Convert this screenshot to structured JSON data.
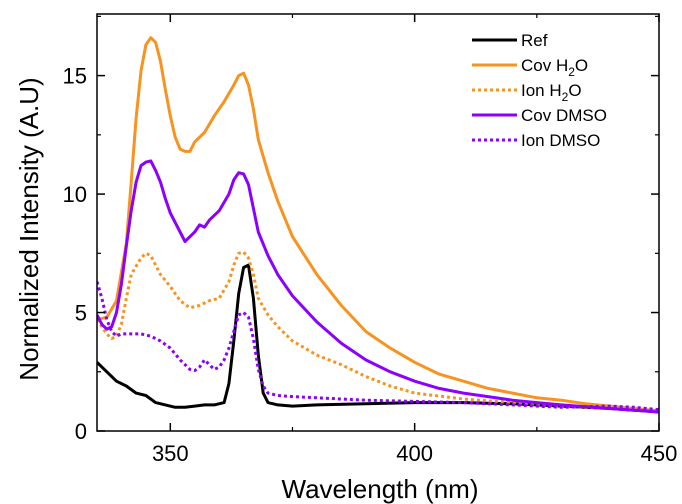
{
  "chart_data": {
    "type": "line",
    "title": "",
    "xlabel": "Wavelength (nm)",
    "ylabel": "Normalized Intensity (A.U)",
    "xlim": [
      335,
      450
    ],
    "ylim": [
      0,
      17.6
    ],
    "xticks": [
      350,
      400,
      450
    ],
    "yticks": [
      0,
      5,
      10,
      15
    ],
    "grid": false,
    "legend_position": "top-right",
    "series": [
      {
        "name": "Ref",
        "color": "#000000",
        "dashed": false,
        "points": [
          [
            335,
            2.9
          ],
          [
            337,
            2.5
          ],
          [
            339,
            2.1
          ],
          [
            341,
            1.9
          ],
          [
            343,
            1.6
          ],
          [
            345,
            1.5
          ],
          [
            347,
            1.2
          ],
          [
            349,
            1.1
          ],
          [
            351,
            1.0
          ],
          [
            353,
            1.0
          ],
          [
            355,
            1.05
          ],
          [
            357,
            1.1
          ],
          [
            359,
            1.1
          ],
          [
            361,
            1.2
          ],
          [
            362,
            2.0
          ],
          [
            363,
            3.8
          ],
          [
            364,
            5.8
          ],
          [
            365,
            6.9
          ],
          [
            366,
            7.0
          ],
          [
            367,
            5.6
          ],
          [
            368,
            3.2
          ],
          [
            369,
            1.6
          ],
          [
            370,
            1.2
          ],
          [
            372,
            1.1
          ],
          [
            375,
            1.05
          ],
          [
            380,
            1.1
          ],
          [
            390,
            1.15
          ],
          [
            400,
            1.2
          ],
          [
            410,
            1.2
          ],
          [
            420,
            1.15
          ],
          [
            430,
            1.05
          ],
          [
            440,
            0.95
          ],
          [
            450,
            0.8
          ]
        ]
      },
      {
        "name": "Cov H2O",
        "color": "#f7931e",
        "dashed": false,
        "points": [
          [
            335,
            4.7
          ],
          [
            337,
            4.8
          ],
          [
            339,
            5.5
          ],
          [
            341,
            7.9
          ],
          [
            342,
            10.5
          ],
          [
            343,
            13.2
          ],
          [
            344,
            15.2
          ],
          [
            345,
            16.3
          ],
          [
            346,
            16.6
          ],
          [
            347,
            16.4
          ],
          [
            348,
            15.6
          ],
          [
            349,
            14.4
          ],
          [
            350,
            13.3
          ],
          [
            351,
            12.4
          ],
          [
            352,
            11.9
          ],
          [
            353,
            11.8
          ],
          [
            354,
            11.8
          ],
          [
            355,
            12.2
          ],
          [
            357,
            12.6
          ],
          [
            359,
            13.3
          ],
          [
            361,
            13.9
          ],
          [
            363,
            14.6
          ],
          [
            364,
            15.0
          ],
          [
            365,
            15.1
          ],
          [
            366,
            14.6
          ],
          [
            367,
            13.6
          ],
          [
            368,
            12.3
          ],
          [
            370,
            10.9
          ],
          [
            372,
            9.7
          ],
          [
            375,
            8.2
          ],
          [
            380,
            6.6
          ],
          [
            385,
            5.3
          ],
          [
            390,
            4.2
          ],
          [
            395,
            3.5
          ],
          [
            400,
            2.9
          ],
          [
            405,
            2.4
          ],
          [
            410,
            2.1
          ],
          [
            415,
            1.8
          ],
          [
            420,
            1.6
          ],
          [
            425,
            1.4
          ],
          [
            430,
            1.3
          ],
          [
            435,
            1.15
          ],
          [
            440,
            1.05
          ],
          [
            445,
            0.95
          ],
          [
            450,
            0.85
          ]
        ]
      },
      {
        "name": "Ion H2O",
        "color": "#f7931e",
        "dashed": true,
        "points": [
          [
            335,
            4.7
          ],
          [
            337,
            4.1
          ],
          [
            338,
            3.9
          ],
          [
            339,
            4.0
          ],
          [
            340,
            4.5
          ],
          [
            341,
            5.6
          ],
          [
            342,
            6.6
          ],
          [
            344,
            7.3
          ],
          [
            345,
            7.5
          ],
          [
            346,
            7.4
          ],
          [
            347,
            7.0
          ],
          [
            348,
            6.6
          ],
          [
            350,
            6.1
          ],
          [
            352,
            5.5
          ],
          [
            354,
            5.2
          ],
          [
            356,
            5.3
          ],
          [
            358,
            5.5
          ],
          [
            360,
            5.6
          ],
          [
            362,
            6.3
          ],
          [
            363,
            7.0
          ],
          [
            364,
            7.5
          ],
          [
            365,
            7.55
          ],
          [
            366,
            7.3
          ],
          [
            367,
            6.6
          ],
          [
            368,
            5.6
          ],
          [
            370,
            4.9
          ],
          [
            372,
            4.4
          ],
          [
            375,
            3.8
          ],
          [
            380,
            3.2
          ],
          [
            385,
            2.8
          ],
          [
            390,
            2.3
          ],
          [
            395,
            1.9
          ],
          [
            400,
            1.6
          ],
          [
            410,
            1.35
          ],
          [
            420,
            1.2
          ],
          [
            430,
            1.05
          ],
          [
            440,
            0.95
          ],
          [
            450,
            0.85
          ]
        ]
      },
      {
        "name": "Cov DMSO",
        "color": "#8b00ff",
        "dashed": false,
        "points": [
          [
            335,
            4.9
          ],
          [
            336,
            4.5
          ],
          [
            337,
            4.3
          ],
          [
            338,
            4.4
          ],
          [
            339,
            5.0
          ],
          [
            340,
            6.2
          ],
          [
            341,
            7.8
          ],
          [
            342,
            9.3
          ],
          [
            343,
            10.5
          ],
          [
            344,
            11.2
          ],
          [
            345,
            11.35
          ],
          [
            346,
            11.4
          ],
          [
            347,
            11.0
          ],
          [
            348,
            10.5
          ],
          [
            349,
            9.8
          ],
          [
            350,
            9.2
          ],
          [
            351,
            8.8
          ],
          [
            352,
            8.4
          ],
          [
            353,
            8.0
          ],
          [
            354,
            8.2
          ],
          [
            355,
            8.4
          ],
          [
            356,
            8.7
          ],
          [
            357,
            8.6
          ],
          [
            358,
            8.9
          ],
          [
            360,
            9.3
          ],
          [
            362,
            10.0
          ],
          [
            363,
            10.6
          ],
          [
            364,
            10.9
          ],
          [
            365,
            10.85
          ],
          [
            366,
            10.4
          ],
          [
            367,
            9.4
          ],
          [
            368,
            8.4
          ],
          [
            370,
            7.4
          ],
          [
            372,
            6.6
          ],
          [
            375,
            5.7
          ],
          [
            380,
            4.6
          ],
          [
            385,
            3.7
          ],
          [
            390,
            3.0
          ],
          [
            395,
            2.5
          ],
          [
            400,
            2.1
          ],
          [
            405,
            1.8
          ],
          [
            410,
            1.6
          ],
          [
            415,
            1.45
          ],
          [
            420,
            1.3
          ],
          [
            425,
            1.2
          ],
          [
            430,
            1.1
          ],
          [
            440,
            0.95
          ],
          [
            450,
            0.8
          ]
        ]
      },
      {
        "name": "Ion DMSO",
        "color": "#8b00ff",
        "dashed": true,
        "points": [
          [
            335,
            6.3
          ],
          [
            336,
            5.6
          ],
          [
            337,
            4.7
          ],
          [
            338,
            4.2
          ],
          [
            339,
            4.0
          ],
          [
            340,
            4.1
          ],
          [
            342,
            4.1
          ],
          [
            344,
            4.1
          ],
          [
            346,
            4.0
          ],
          [
            348,
            3.8
          ],
          [
            350,
            3.5
          ],
          [
            352,
            3.0
          ],
          [
            354,
            2.6
          ],
          [
            355,
            2.55
          ],
          [
            356,
            2.7
          ],
          [
            357,
            3.0
          ],
          [
            358,
            2.8
          ],
          [
            359,
            2.6
          ],
          [
            360,
            2.7
          ],
          [
            361,
            3.0
          ],
          [
            362,
            3.5
          ],
          [
            363,
            4.2
          ],
          [
            364,
            4.9
          ],
          [
            365,
            5.0
          ],
          [
            366,
            4.8
          ],
          [
            367,
            3.9
          ],
          [
            368,
            2.6
          ],
          [
            369,
            1.9
          ],
          [
            370,
            1.6
          ],
          [
            372,
            1.5
          ],
          [
            375,
            1.45
          ],
          [
            380,
            1.4
          ],
          [
            385,
            1.35
          ],
          [
            390,
            1.3
          ],
          [
            400,
            1.25
          ],
          [
            410,
            1.2
          ],
          [
            420,
            1.1
          ],
          [
            430,
            1.0
          ],
          [
            440,
            1.05
          ],
          [
            445,
            1.0
          ],
          [
            450,
            0.9
          ]
        ]
      }
    ],
    "legend": [
      {
        "label": "Ref",
        "sub": "",
        "tail": ""
      },
      {
        "label": "Cov H",
        "sub": "2",
        "tail": "O"
      },
      {
        "label": "Ion H",
        "sub": "2",
        "tail": "O"
      },
      {
        "label": "Cov DMSO",
        "sub": "",
        "tail": ""
      },
      {
        "label": "Ion DMSO",
        "sub": "",
        "tail": ""
      }
    ]
  }
}
